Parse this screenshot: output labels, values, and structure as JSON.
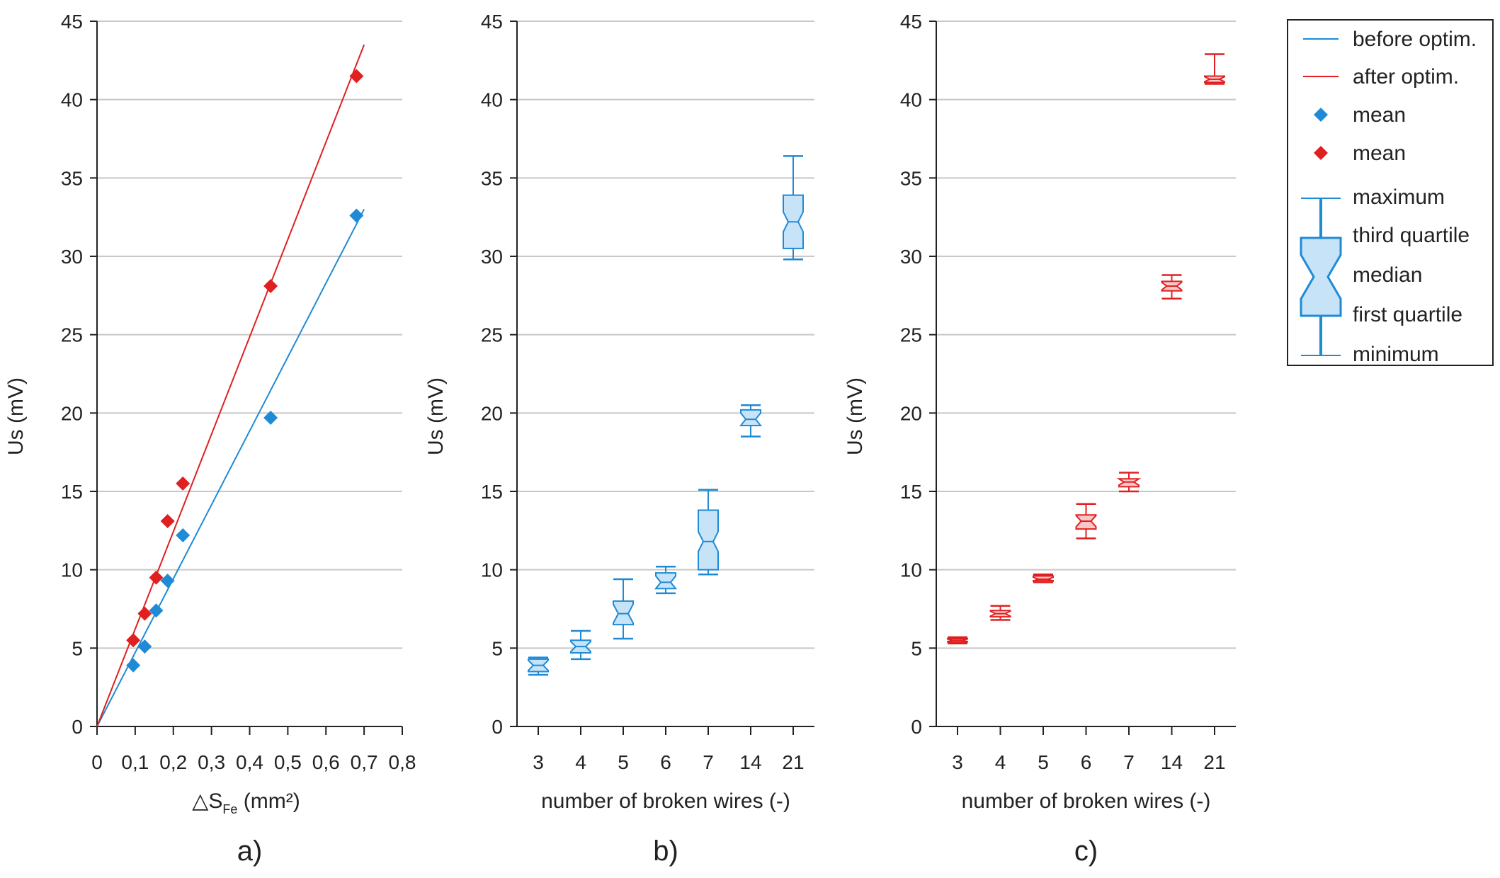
{
  "colors": {
    "blue": "#1f8ad6",
    "blue_fill": "#c6e3f8",
    "red": "#e02020",
    "red_fill": "#f8c8c8",
    "grid": "#c8c8c8",
    "axis": "#222222"
  },
  "legend": {
    "items": [
      "before optim.",
      "after optim.",
      "mean",
      "mean",
      "maximum",
      "third quartile",
      "median",
      "first quartile",
      "minimum"
    ]
  },
  "chart_data": [
    {
      "type": "scatter",
      "panel_label": "a)",
      "xlabel": "△S",
      "xlabel_sub": "Fe",
      "xlabel_unit": " (mm²)",
      "ylabel": "Us (mV)",
      "xlim": [
        0,
        0.8
      ],
      "ylim": [
        0,
        45
      ],
      "xticks": [
        "0",
        "0,1",
        "0,2",
        "0,3",
        "0,4",
        "0,5",
        "0,6",
        "0,7",
        "0,8"
      ],
      "yticks": [
        "0",
        "5",
        "10",
        "15",
        "20",
        "25",
        "30",
        "35",
        "40",
        "45"
      ],
      "grid": "horizontal",
      "series": [
        {
          "name": "mean",
          "color": "blue",
          "marker": "diamond",
          "x": [
            0.095,
            0.125,
            0.155,
            0.185,
            0.225,
            0.455,
            0.68
          ],
          "y": [
            3.9,
            5.1,
            7.4,
            9.3,
            12.2,
            19.7,
            32.6
          ]
        },
        {
          "name": "mean",
          "color": "red",
          "marker": "diamond",
          "x": [
            0.095,
            0.125,
            0.155,
            0.185,
            0.225,
            0.455,
            0.68
          ],
          "y": [
            5.5,
            7.2,
            9.5,
            13.1,
            15.5,
            28.1,
            41.5
          ]
        },
        {
          "name": "before optim.",
          "color": "blue",
          "line": true,
          "x": [
            0,
            0.7
          ],
          "y": [
            0,
            33.0
          ]
        },
        {
          "name": "after optim.",
          "color": "red",
          "line": true,
          "x": [
            0,
            0.7
          ],
          "y": [
            0,
            43.5
          ]
        }
      ]
    },
    {
      "type": "boxplot",
      "panel_label": "b)",
      "xlabel": "number of broken wires (-)",
      "ylabel": "Us (mV)",
      "ylim": [
        0,
        45
      ],
      "yticks": [
        "0",
        "5",
        "10",
        "15",
        "20",
        "25",
        "30",
        "35",
        "40",
        "45"
      ],
      "categories": [
        "3",
        "4",
        "5",
        "6",
        "7",
        "14",
        "21"
      ],
      "grid": "horizontal",
      "color": "blue",
      "boxes": [
        {
          "min": 3.3,
          "q1": 3.5,
          "median": 3.9,
          "q3": 4.3,
          "max": 4.4
        },
        {
          "min": 4.3,
          "q1": 4.7,
          "median": 5.1,
          "q3": 5.5,
          "max": 6.1
        },
        {
          "min": 5.6,
          "q1": 6.5,
          "median": 7.2,
          "q3": 8.0,
          "max": 9.4
        },
        {
          "min": 8.5,
          "q1": 8.8,
          "median": 9.2,
          "q3": 9.8,
          "max": 10.2
        },
        {
          "min": 9.7,
          "q1": 10.0,
          "median": 11.8,
          "q3": 13.8,
          "max": 15.1
        },
        {
          "min": 18.5,
          "q1": 19.2,
          "median": 19.6,
          "q3": 20.2,
          "max": 20.5
        },
        {
          "min": 29.8,
          "q1": 30.5,
          "median": 32.2,
          "q3": 33.9,
          "max": 36.4
        }
      ]
    },
    {
      "type": "boxplot",
      "panel_label": "c)",
      "xlabel": "number of broken wires (-)",
      "ylabel": "Us (mV)",
      "ylim": [
        0,
        45
      ],
      "yticks": [
        "0",
        "5",
        "10",
        "15",
        "20",
        "25",
        "30",
        "35",
        "40",
        "45"
      ],
      "categories": [
        "3",
        "4",
        "5",
        "6",
        "7",
        "14",
        "21"
      ],
      "grid": "horizontal",
      "color": "red",
      "boxes": [
        {
          "min": 5.3,
          "q1": 5.4,
          "median": 5.5,
          "q3": 5.6,
          "max": 5.7
        },
        {
          "min": 6.8,
          "q1": 7.0,
          "median": 7.2,
          "q3": 7.4,
          "max": 7.7
        },
        {
          "min": 9.2,
          "q1": 9.3,
          "median": 9.4,
          "q3": 9.6,
          "max": 9.7
        },
        {
          "min": 12.0,
          "q1": 12.6,
          "median": 13.1,
          "q3": 13.5,
          "max": 14.2
        },
        {
          "min": 15.0,
          "q1": 15.3,
          "median": 15.6,
          "q3": 15.8,
          "max": 16.2
        },
        {
          "min": 27.3,
          "q1": 27.8,
          "median": 28.1,
          "q3": 28.4,
          "max": 28.8
        },
        {
          "min": 41.0,
          "q1": 41.1,
          "median": 41.3,
          "q3": 41.5,
          "max": 42.9
        }
      ]
    }
  ]
}
